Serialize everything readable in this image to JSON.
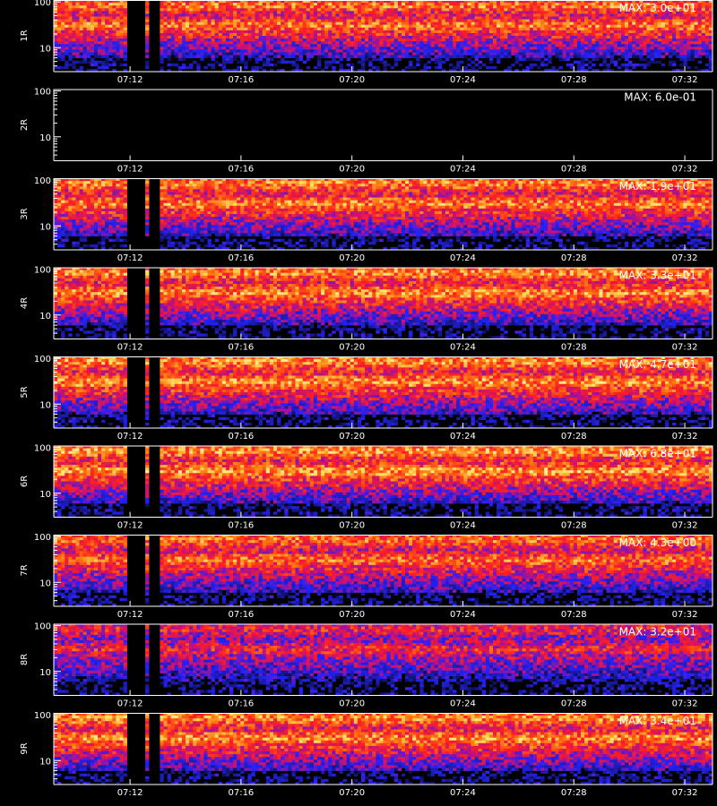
{
  "chart_data": {
    "type": "heatmap",
    "x_ticks": [
      "07:12",
      "07:16",
      "07:20",
      "07:24",
      "07:28",
      "07:32"
    ],
    "x_range": [
      "07:09:15",
      "07:33:00"
    ],
    "y_scale": "log",
    "y_ticks": [
      "100",
      "10"
    ],
    "y_range": [
      3,
      110
    ],
    "colormap": [
      "#000000",
      "#1a1a9e",
      "#2222ff",
      "#c01080",
      "#ff2020",
      "#ff7a10",
      "#ffe060",
      "#ffffff"
    ],
    "gaps": [
      [
        "07:11:55",
        "07:12:28"
      ],
      [
        "07:12:44",
        "07:12:58"
      ]
    ],
    "panels": [
      {
        "label": "1R",
        "max_text": "MAX: 3.0e+01",
        "intensity": 0.8
      },
      {
        "label": "2R",
        "max_text": "MAX: 6.0e-01",
        "intensity": 0.0
      },
      {
        "label": "3R",
        "max_text": "MAX: 1.9e+01",
        "intensity": 0.82
      },
      {
        "label": "4R",
        "max_text": "MAX: 3.3e+01",
        "intensity": 0.84
      },
      {
        "label": "5R",
        "max_text": "MAX: 4.7e+01",
        "intensity": 0.85
      },
      {
        "label": "6R",
        "max_text": "MAX: 6.8e+01",
        "intensity": 0.86
      },
      {
        "label": "7R",
        "max_text": "MAX: 4.3e+00",
        "intensity": 0.78
      },
      {
        "label": "8R",
        "max_text": "MAX: 3.2e+01",
        "intensity": 0.62
      },
      {
        "label": "9R",
        "max_text": "MAX: 3.4e+01",
        "intensity": 0.84
      }
    ]
  }
}
